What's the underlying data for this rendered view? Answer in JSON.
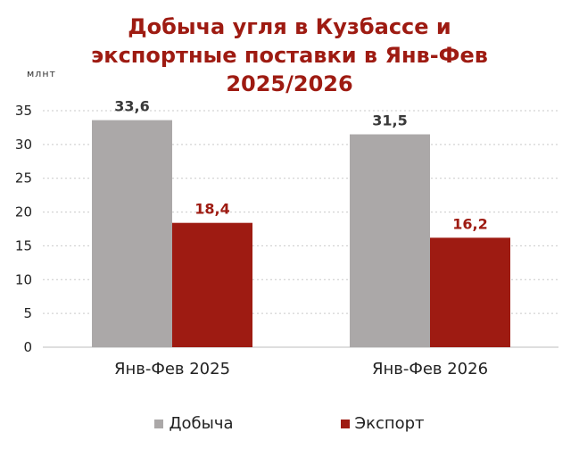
{
  "chart_data": {
    "type": "bar",
    "title_lines": [
      "Добыча угля в Кузбассе и",
      "экспортные поставки в Янв-Фев",
      "2025/2026"
    ],
    "unit": "млнт",
    "categories": [
      "Янв-Фев 2025",
      "Янв-Фев 2026"
    ],
    "series": [
      {
        "name": "Добыча",
        "color": "#aba8a8",
        "label_color": "#3a3a3a",
        "values": [
          33.6,
          31.5
        ],
        "labels": [
          "33,6",
          "31,5"
        ]
      },
      {
        "name": "Экспорт",
        "color": "#9e1b12",
        "label_color": "#9e1b12",
        "values": [
          18.4,
          16.2
        ],
        "labels": [
          "18,4",
          "16,2"
        ]
      }
    ],
    "ylim": [
      0,
      35
    ],
    "yticks": [
      "0",
      "5",
      "10",
      "15",
      "20",
      "25",
      "30",
      "35"
    ],
    "grid": true,
    "legend_position": "bottom"
  }
}
